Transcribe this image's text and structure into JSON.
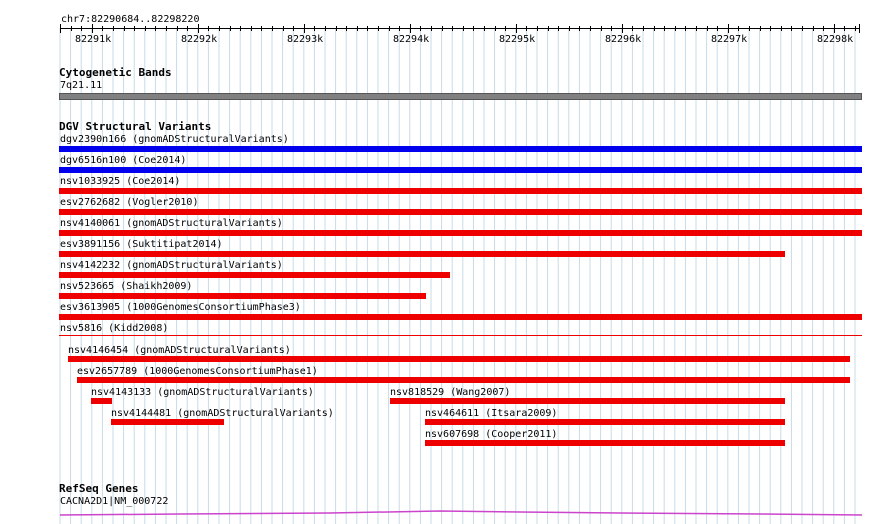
{
  "ruler": {
    "region": "chr7:82290684..82298220",
    "ticks": [
      "82291k",
      "82292k",
      "82293k",
      "82294k",
      "82295k",
      "82296k",
      "82297k",
      "82298k"
    ]
  },
  "cytoband": {
    "title": "Cytogenetic Bands",
    "band": "7q21.11"
  },
  "dgv": {
    "title": "DGV Structural Variants",
    "features": [
      {
        "label": "dgv2390n166 (gnomADStructuralVariants)",
        "color": "#0000ee"
      },
      {
        "label": "dgv6516n100 (Coe2014)",
        "color": "#0000ee"
      },
      {
        "label": "nsv1033925 (Coe2014)",
        "color": "#ee0000"
      },
      {
        "label": "esv2762682 (Vogler2010)",
        "color": "#ee0000"
      },
      {
        "label": "nsv4140061 (gnomADStructuralVariants)",
        "color": "#ee0000"
      },
      {
        "label": "esv3891156 (Suktitipat2014)",
        "color": "#ee0000"
      },
      {
        "label": "nsv4142232 (gnomADStructuralVariants)",
        "color": "#ee0000"
      },
      {
        "label": "nsv523665 (Shaikh2009)",
        "color": "#ee0000"
      },
      {
        "label": "esv3613905 (1000GenomesConsortiumPhase3)",
        "color": "#ee0000"
      },
      {
        "label": "nsv5816 (Kidd2008)",
        "color": "#ee0000"
      },
      {
        "label": "nsv4146454 (gnomADStructuralVariants)",
        "color": "#ee0000"
      },
      {
        "label": "esv2657789 (1000GenomesConsortiumPhase1)",
        "color": "#ee0000"
      },
      {
        "label": "nsv4143133 (gnomADStructuralVariants)",
        "color": "#ee0000"
      },
      {
        "label": "nsv818529 (Wang2007)",
        "color": "#ee0000"
      },
      {
        "label": "nsv4144481 (gnomADStructuralVariants)",
        "color": "#ee0000"
      },
      {
        "label": "nsv464611 (Itsara2009)",
        "color": "#ee0000"
      },
      {
        "label": "nsv607698 (Cooper2011)",
        "color": "#ee0000"
      }
    ]
  },
  "refseq": {
    "title": "RefSeq Genes",
    "gene": "CACNA2D1|NM_000722",
    "color": "#cc44cc"
  },
  "colors": {
    "grid": "#c7dbe8",
    "band": "#808080"
  }
}
